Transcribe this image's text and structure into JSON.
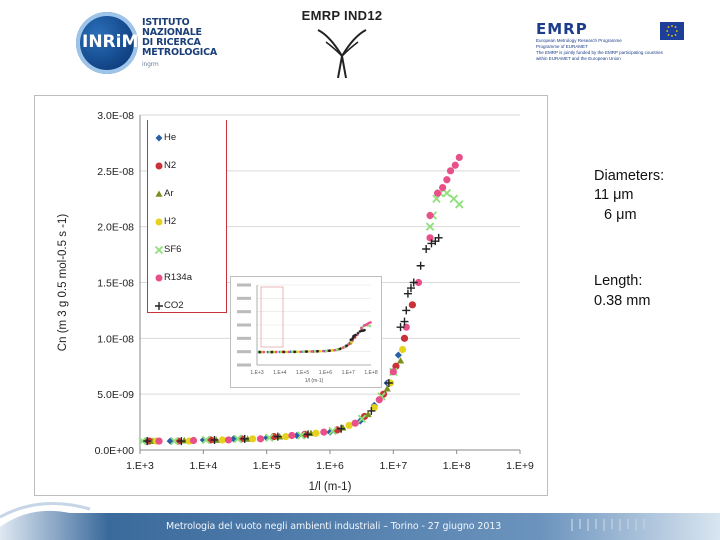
{
  "header": {
    "inrim": {
      "mark": "INRiM",
      "lines": [
        "ISTITUTO",
        "NAZIONALE",
        "DI RICERCA",
        "METROLOGICA"
      ],
      "tagline": "ingrm"
    },
    "emrp_ind": {
      "title": "EMRP IND12"
    },
    "emrp": {
      "title": "EMRP",
      "lines": [
        "European Metrology Research Programme",
        "Programme of EURAMET",
        "The EMRP is jointly funded by the EMRP participating countries",
        "within EURAMET and the European Union"
      ]
    }
  },
  "annotations": {
    "diameters_label": "Diameters:",
    "diameter_1": "11 μm",
    "diameter_2": "6 μm",
    "length_label": "Length:",
    "length_value": "0.38 mm"
  },
  "footer": {
    "text": "Metrologia del vuoto negli ambienti industriali – Torino - 27 giugno 2013"
  },
  "chart_data": {
    "type": "scatter",
    "title": "",
    "xlabel": "1/l (m-1)",
    "ylabel": "Cn (m 3 g 0.5 mol-0.5 s -1)",
    "x_scale": "log",
    "xlim": [
      1000,
      1000000000
    ],
    "ylim": [
      0,
      3e-08
    ],
    "x_ticks": [
      "1.E+3",
      "1.E+4",
      "1.E+5",
      "1.E+6",
      "1.E+7",
      "1.E+8",
      "1.E+9"
    ],
    "y_ticks": [
      "0.0E+00",
      "5.0E-09",
      "1.0E-08",
      "1.5E-08",
      "2.0E-08",
      "2.5E-08",
      "3.0E-08"
    ],
    "legend_position": "top-left",
    "series": [
      {
        "name": "He",
        "color": "#2a5fa6",
        "marker": "diamond",
        "points": [
          [
            1200,
            8e-10
          ],
          [
            3000,
            8e-10
          ],
          [
            10000,
            9e-10
          ],
          [
            30000,
            1e-09
          ],
          [
            100000,
            1.1e-09
          ],
          [
            300000,
            1.3e-09
          ],
          [
            1000000,
            1.6e-09
          ],
          [
            3000000,
            2.6e-09
          ],
          [
            5000000,
            4e-09
          ],
          [
            8000000,
            6e-09
          ],
          [
            12000000,
            8.5e-09
          ]
        ]
      },
      {
        "name": "N2",
        "color": "#c83238",
        "marker": "circle",
        "points": [
          [
            1400,
            8e-10
          ],
          [
            4000,
            8e-10
          ],
          [
            13000,
            9e-10
          ],
          [
            40000,
            1e-09
          ],
          [
            130000,
            1.2e-09
          ],
          [
            400000,
            1.4e-09
          ],
          [
            1300000,
            1.8e-09
          ],
          [
            3500000,
            3e-09
          ],
          [
            7000000,
            5e-09
          ],
          [
            11000000,
            7.5e-09
          ],
          [
            15000000,
            1e-08
          ],
          [
            20000000,
            1.3e-08
          ]
        ]
      },
      {
        "name": "Ar",
        "color": "#7a8f1e",
        "marker": "triangle",
        "points": [
          [
            1600,
            8e-10
          ],
          [
            5000,
            8.5e-10
          ],
          [
            16000,
            9e-10
          ],
          [
            50000,
            1e-09
          ],
          [
            160000,
            1.2e-09
          ],
          [
            500000,
            1.5e-09
          ],
          [
            1600000,
            2e-09
          ],
          [
            4000000,
            3.2e-09
          ],
          [
            8000000,
            5.5e-09
          ],
          [
            13000000,
            8e-09
          ]
        ]
      },
      {
        "name": "H2",
        "color": "#e6d21c",
        "marker": "circle",
        "points": [
          [
            1800,
            8e-10
          ],
          [
            6000,
            8e-10
          ],
          [
            20000,
            9e-10
          ],
          [
            60000,
            1e-09
          ],
          [
            200000,
            1.2e-09
          ],
          [
            600000,
            1.5e-09
          ],
          [
            2000000,
            2.2e-09
          ],
          [
            5000000,
            3.8e-09
          ],
          [
            9000000,
            6e-09
          ],
          [
            14000000,
            9e-09
          ]
        ]
      },
      {
        "name": "SF6",
        "color": "#8ee07a",
        "marker": "x",
        "points": [
          [
            1100,
            8e-10
          ],
          [
            3500,
            8e-10
          ],
          [
            11000,
            9e-10
          ],
          [
            35000,
            1e-09
          ],
          [
            110000,
            1.1e-09
          ],
          [
            350000,
            1.3e-09
          ],
          [
            1100000,
            1.7e-09
          ],
          [
            3200000,
            2.8e-09
          ],
          [
            6500000,
            4.8e-09
          ],
          [
            10000000,
            7e-09
          ],
          [
            38000000,
            2e-08
          ],
          [
            42000000,
            2.1e-08
          ],
          [
            48000000,
            2.25e-08
          ],
          [
            55000000,
            2.3e-08
          ],
          [
            70000000,
            2.3e-08
          ],
          [
            90000000,
            2.25e-08
          ],
          [
            110000000,
            2.2e-08
          ]
        ]
      },
      {
        "name": "R134a",
        "color": "#e8508a",
        "marker": "circle",
        "points": [
          [
            2000,
            8e-10
          ],
          [
            7000,
            8.5e-10
          ],
          [
            25000,
            9e-10
          ],
          [
            80000,
            1e-09
          ],
          [
            250000,
            1.3e-09
          ],
          [
            800000,
            1.6e-09
          ],
          [
            2500000,
            2.4e-09
          ],
          [
            6000000,
            4.5e-09
          ],
          [
            10000000,
            7e-09
          ],
          [
            16000000,
            1.1e-08
          ],
          [
            25000000,
            1.5e-08
          ],
          [
            38000000,
            1.9e-08
          ],
          [
            38000000,
            2.1e-08
          ],
          [
            50000000,
            2.3e-08
          ],
          [
            60000000,
            2.35e-08
          ],
          [
            70000000,
            2.42e-08
          ],
          [
            80000000,
            2.5e-08
          ],
          [
            95000000,
            2.55e-08
          ],
          [
            110000000,
            2.62e-08
          ]
        ]
      },
      {
        "name": "CO2",
        "color": "#222222",
        "marker": "plus",
        "points": [
          [
            1300,
            8e-10
          ],
          [
            4500,
            8e-10
          ],
          [
            15000,
            9e-10
          ],
          [
            45000,
            1e-09
          ],
          [
            150000,
            1.2e-09
          ],
          [
            450000,
            1.4e-09
          ],
          [
            1500000,
            1.9e-09
          ],
          [
            4500000,
            3.5e-09
          ],
          [
            8500000,
            6e-09
          ],
          [
            13000000,
            1.1e-08
          ],
          [
            15000000,
            1.15e-08
          ],
          [
            16000000,
            1.25e-08
          ],
          [
            17000000,
            1.4e-08
          ],
          [
            19000000,
            1.45e-08
          ],
          [
            21000000,
            1.5e-08
          ],
          [
            27000000,
            1.65e-08
          ],
          [
            33000000,
            1.8e-08
          ],
          [
            40000000,
            1.85e-08
          ],
          [
            46000000,
            1.87e-08
          ],
          [
            52000000,
            1.9e-08
          ]
        ]
      }
    ],
    "inset": {
      "type": "scatter",
      "x_ticks": [
        "1.E+3",
        "1.E+4",
        "1.E+5",
        "1.E+6",
        "1.E+7",
        "1.E+8"
      ],
      "y_ticks": [
        "",
        "",
        "",
        "",
        "",
        "",
        ""
      ],
      "xlabel": "1/l (m-1)"
    }
  }
}
